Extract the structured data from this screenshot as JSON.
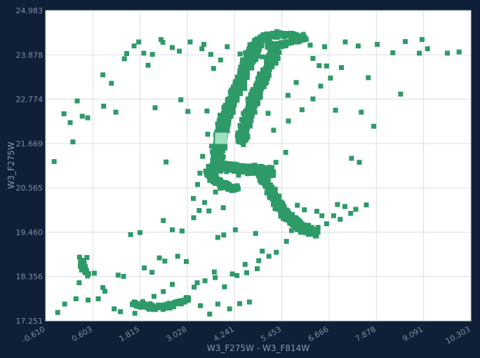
{
  "chart_data": {
    "type": "scatter",
    "title": "",
    "xlabel": "W3_F275W - W3_F814W",
    "ylabel": "W3_F275W",
    "xlim": [
      -0.61,
      10.303
    ],
    "ylim": [
      17.251,
      24.983
    ],
    "x_ticks": [
      "-0.610",
      "0.603",
      "1.815",
      "3.028",
      "4.241",
      "5.453",
      "6.666",
      "7.878",
      "9.091",
      "10.303"
    ],
    "y_ticks": [
      "24.983",
      "23.878",
      "22.774",
      "21.669",
      "20.565",
      "19.460",
      "18.356",
      "17.251"
    ],
    "grid": true,
    "marker_color": "#2e9a68",
    "highlight_color": "#9fe0c0",
    "highlight_point": {
      "x": 3.9,
      "y": 21.8
    },
    "series": [
      {
        "points": [
          [
            -0.39,
            21.22
          ],
          [
            -0.14,
            22.41
          ],
          [
            0.02,
            22.19
          ],
          [
            0.09,
            21.71
          ],
          [
            0.2,
            22.73
          ],
          [
            0.33,
            22.35
          ],
          [
            0.47,
            22.31
          ],
          [
            0.86,
            23.38
          ],
          [
            0.88,
            22.6
          ],
          [
            1.08,
            23.17
          ],
          [
            1.19,
            22.45
          ],
          [
            1.41,
            23.78
          ],
          [
            1.47,
            23.91
          ],
          [
            1.66,
            24.1
          ],
          [
            1.78,
            24.2
          ],
          [
            1.91,
            23.92
          ],
          [
            2.02,
            23.62
          ],
          [
            2.13,
            23.89
          ],
          [
            2.35,
            24.26
          ],
          [
            2.4,
            24.19
          ],
          [
            2.64,
            24.06
          ],
          [
            2.82,
            23.97
          ],
          [
            3.1,
            24.2
          ],
          [
            3.4,
            24.03
          ],
          [
            2.2,
            22.56
          ],
          [
            3.45,
            24.14
          ],
          [
            3.63,
            23.89
          ],
          [
            2.86,
            22.76
          ],
          [
            3.04,
            22.47
          ],
          [
            3.42,
            21.35
          ],
          [
            3.53,
            22.48
          ],
          [
            2.48,
            21.21
          ],
          [
            3.55,
            21.9
          ],
          [
            6.55,
            24.08
          ],
          [
            7.08,
            24.2
          ],
          [
            7.41,
            24.1
          ],
          [
            7.9,
            24.14
          ],
          [
            8.3,
            23.93
          ],
          [
            8.62,
            24.21
          ],
          [
            8.98,
            23.92
          ],
          [
            9.19,
            24.03
          ],
          [
            9.7,
            23.92
          ],
          [
            10.0,
            23.95
          ],
          [
            6.6,
            23.6
          ],
          [
            6.98,
            23.56
          ],
          [
            7.67,
            23.31
          ],
          [
            6.83,
            22.5
          ],
          [
            7.49,
            22.45
          ],
          [
            7.81,
            22.1
          ],
          [
            8.5,
            22.9
          ],
          [
            9.05,
            24.26
          ],
          [
            6.45,
            23.1
          ],
          [
            7.24,
            21.3
          ],
          [
            7.44,
            21.2
          ],
          [
            6.88,
            20.15
          ],
          [
            7.07,
            20.1
          ],
          [
            7.35,
            20.03
          ],
          [
            7.62,
            20.14
          ],
          [
            6.95,
            19.78
          ],
          [
            6.6,
            19.67
          ],
          [
            6.38,
            19.58
          ],
          [
            6.05,
            19.52
          ],
          [
            5.88,
            19.76
          ],
          [
            5.7,
            19.5
          ],
          [
            5.31,
            18.96
          ],
          [
            4.86,
            18.75
          ],
          [
            4.55,
            18.45
          ],
          [
            4.3,
            18.38
          ],
          [
            3.98,
            18.1
          ],
          [
            3.72,
            18.47
          ],
          [
            3.48,
            18.25
          ],
          [
            3.2,
            18.09
          ],
          [
            2.64,
            18.16
          ],
          [
            2.41,
            17.98
          ],
          [
            2.12,
            18.46
          ],
          [
            1.92,
            18.57
          ],
          [
            1.57,
            19.4
          ],
          [
            1.81,
            19.45
          ],
          [
            2.41,
            19.75
          ],
          [
            2.64,
            19.52
          ],
          [
            2.89,
            19.49
          ],
          [
            3.19,
            19.82
          ],
          [
            3.58,
            19.99
          ],
          [
            3.95,
            20.07
          ],
          [
            2.31,
            18.82
          ],
          [
            1.25,
            18.39
          ],
          [
            1.39,
            18.36
          ],
          [
            0.64,
            18.44
          ],
          [
            0.38,
            18.68
          ],
          [
            0.31,
            18.52
          ],
          [
            0.25,
            18.2
          ],
          [
            0.26,
            18.84
          ],
          [
            0.45,
            18.83
          ],
          [
            0.86,
            18.08
          ],
          [
            0.91,
            17.99
          ],
          [
            0.74,
            17.8
          ],
          [
            0.48,
            17.77
          ],
          [
            0.17,
            17.8
          ],
          [
            -0.12,
            17.67
          ],
          [
            -0.3,
            17.46
          ],
          [
            2.45,
            18.74
          ],
          [
            2.78,
            18.86
          ],
          [
            3.0,
            18.73
          ],
          [
            3.28,
            18.2
          ],
          [
            3.74,
            18.33
          ],
          [
            4.18,
            18.42
          ],
          [
            4.51,
            18.66
          ],
          [
            4.82,
            18.55
          ],
          [
            5.12,
            18.86
          ],
          [
            5.57,
            19.23
          ],
          [
            3.81,
            19.33
          ],
          [
            3.96,
            19.39
          ],
          [
            4.26,
            19.52
          ],
          [
            4.78,
            19.43
          ],
          [
            4.95,
            18.99
          ],
          [
            3.06,
            17.78
          ],
          [
            3.36,
            17.63
          ],
          [
            3.6,
            17.42
          ],
          [
            3.81,
            17.67
          ],
          [
            4.11,
            17.55
          ],
          [
            4.37,
            17.68
          ],
          [
            4.62,
            17.72
          ],
          [
            1.15,
            17.55
          ],
          [
            1.31,
            17.48
          ],
          [
            1.68,
            17.44
          ],
          [
            1.98,
            17.6
          ],
          [
            2.17,
            17.86
          ],
          [
            1.88,
            17.73
          ],
          [
            4.63,
            24.13
          ],
          [
            5.15,
            24.38
          ],
          [
            5.36,
            24.32
          ],
          [
            5.68,
            24.19
          ],
          [
            5.87,
            24.31
          ],
          [
            6.0,
            24.39
          ],
          [
            6.18,
            24.12
          ],
          [
            6.25,
            23.79
          ],
          [
            6.41,
            23.61
          ],
          [
            6.7,
            23.3
          ],
          [
            5.97,
            22.51
          ],
          [
            6.25,
            22.78
          ],
          [
            5.62,
            22.23
          ],
          [
            5.24,
            22.0
          ],
          [
            5.55,
            21.45
          ],
          [
            5.3,
            21.2
          ],
          [
            4.76,
            21.13
          ],
          [
            4.34,
            20.88
          ],
          [
            4.0,
            20.7
          ],
          [
            3.75,
            20.46
          ],
          [
            3.47,
            20.2
          ],
          [
            3.6,
            20.75
          ],
          [
            3.29,
            20.65
          ],
          [
            3.33,
            20.0
          ],
          [
            5.85,
            20.13
          ],
          [
            6.03,
            20.02
          ],
          [
            6.35,
            19.98
          ],
          [
            6.48,
            19.87
          ],
          [
            6.78,
            19.87
          ],
          [
            7.22,
            19.93
          ],
          [
            4.31,
            23.25
          ],
          [
            4.5,
            23.04
          ],
          [
            4.87,
            22.81
          ],
          [
            5.1,
            22.42
          ],
          [
            5.61,
            22.87
          ],
          [
            5.82,
            23.19
          ],
          [
            5.3,
            23.67
          ],
          [
            4.95,
            23.83
          ],
          [
            4.68,
            23.55
          ],
          [
            4.38,
            23.9
          ],
          [
            4.05,
            24.08
          ],
          [
            3.88,
            23.75
          ],
          [
            3.7,
            23.54
          ],
          [
            3.93,
            22.26
          ],
          [
            3.78,
            21.95
          ],
          [
            3.65,
            21.6
          ],
          [
            3.95,
            21.34
          ],
          [
            3.57,
            21.1
          ],
          [
            3.35,
            20.93
          ],
          [
            3.18,
            20.3
          ]
        ],
        "bands": [
          {
            "points": [
              [
                4.95,
                24.33
              ],
              [
                5.15,
                24.36
              ],
              [
                5.42,
                24.4
              ],
              [
                5.68,
                24.38
              ],
              [
                5.9,
                24.33
              ],
              [
                6.05,
                24.3
              ],
              [
                5.63,
                24.18
              ],
              [
                5.42,
                24.12
              ],
              [
                5.23,
                24.08
              ],
              [
                5.08,
                24.15
              ]
            ],
            "spread": 0.06,
            "count": 260
          },
          {
            "points": [
              [
                4.85,
                24.22
              ],
              [
                4.72,
                23.98
              ],
              [
                4.55,
                23.6
              ],
              [
                4.38,
                23.2
              ],
              [
                4.22,
                22.85
              ],
              [
                4.08,
                22.5
              ],
              [
                3.95,
                22.18
              ],
              [
                3.88,
                21.85
              ],
              [
                3.85,
                21.55
              ],
              [
                3.8,
                21.25
              ],
              [
                3.75,
                20.95
              ]
            ],
            "spread": 0.1,
            "count": 900
          },
          {
            "points": [
              [
                5.28,
                23.98
              ],
              [
                5.1,
                23.6
              ],
              [
                4.92,
                23.2
              ],
              [
                4.75,
                22.8
              ],
              [
                4.6,
                22.4
              ],
              [
                4.48,
                22.05
              ],
              [
                4.42,
                21.7
              ]
            ],
            "spread": 0.09,
            "count": 420
          },
          {
            "points": [
              [
                4.0,
                21.1
              ],
              [
                4.3,
                21.05
              ],
              [
                4.62,
                21.02
              ],
              [
                4.9,
                21.0
              ],
              [
                5.2,
                20.95
              ]
            ],
            "spread": 0.1,
            "count": 300
          },
          {
            "points": [
              [
                4.85,
                21.05
              ],
              [
                5.05,
                20.7
              ],
              [
                5.2,
                20.42
              ],
              [
                5.38,
                20.15
              ],
              [
                5.55,
                19.9
              ],
              [
                5.8,
                19.68
              ],
              [
                6.05,
                19.52
              ],
              [
                6.3,
                19.45
              ]
            ],
            "spread": 0.09,
            "count": 520
          },
          {
            "points": [
              [
                3.55,
                20.95
              ],
              [
                3.75,
                20.75
              ],
              [
                4.0,
                20.6
              ],
              [
                4.3,
                20.52
              ]
            ],
            "spread": 0.08,
            "count": 150
          },
          {
            "points": [
              [
                1.65,
                17.68
              ],
              [
                1.95,
                17.62
              ],
              [
                2.25,
                17.58
              ],
              [
                2.55,
                17.62
              ],
              [
                2.85,
                17.72
              ],
              [
                3.1,
                17.8
              ]
            ],
            "spread": 0.06,
            "count": 130
          },
          {
            "points": [
              [
                0.3,
                18.75
              ],
              [
                0.38,
                18.55
              ],
              [
                0.5,
                18.38
              ]
            ],
            "spread": 0.06,
            "count": 25
          }
        ]
      }
    ]
  }
}
